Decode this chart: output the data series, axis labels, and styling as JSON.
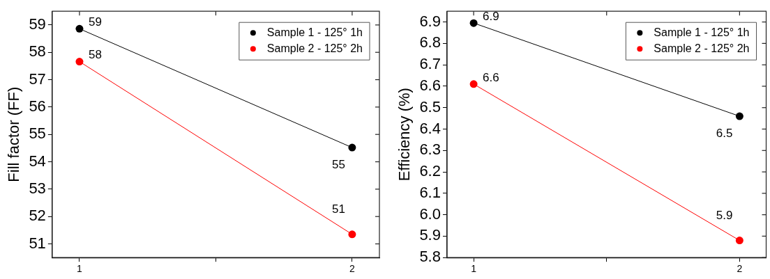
{
  "chart_data": [
    {
      "type": "line",
      "ylabel": "Fill factor (FF)",
      "categories": [
        "1",
        "2"
      ],
      "ylim": [
        50.5,
        59.5
      ],
      "yticks": [
        51,
        52,
        53,
        54,
        55,
        56,
        57,
        58,
        59
      ],
      "grid": false,
      "legend": "top right",
      "marker": "circle",
      "line_style": "solid",
      "series": [
        {
          "name": "Sample 1 - 125° 1h",
          "color": "#000000",
          "values": [
            58.86,
            54.52
          ],
          "value_labels": [
            "59",
            "55"
          ]
        },
        {
          "name": "Sample 2 - 125° 2h",
          "color": "#ff0000",
          "values": [
            57.66,
            51.35
          ],
          "value_labels": [
            "58",
            "51"
          ]
        }
      ]
    },
    {
      "type": "line",
      "ylabel": "Efficiency (%)",
      "categories": [
        "1",
        "2"
      ],
      "ylim": [
        5.8,
        6.95
      ],
      "yticks": [
        {
          "value": 5.8,
          "label": "5.8"
        },
        {
          "value": 5.9,
          "label": "5.9"
        },
        {
          "value": 6.0,
          "label": "6.0"
        },
        {
          "value": 6.1,
          "label": "6.1"
        },
        {
          "value": 6.2,
          "label": "6.2"
        },
        {
          "value": 6.3,
          "label": "6.3"
        },
        {
          "value": 6.4,
          "label": "6.4"
        },
        {
          "value": 6.5,
          "label": "6.5"
        },
        {
          "value": 6.6,
          "label": "6.6"
        },
        {
          "value": 6.7,
          "label": "6.7"
        },
        {
          "value": 6.8,
          "label": "6.8"
        },
        {
          "value": 6.9,
          "label": "6.9"
        }
      ],
      "grid": false,
      "legend": "top right",
      "marker": "circle",
      "line_style": "solid",
      "series": [
        {
          "name": "Sample 1 - 125° 1h",
          "color": "#000000",
          "values": [
            6.895,
            6.46
          ],
          "value_labels": [
            "6.9",
            "6.5"
          ]
        },
        {
          "name": "Sample 2 - 125° 2h",
          "color": "#ff0000",
          "values": [
            6.61,
            5.88
          ],
          "value_labels": [
            "6.6",
            "5.9"
          ]
        }
      ]
    }
  ]
}
